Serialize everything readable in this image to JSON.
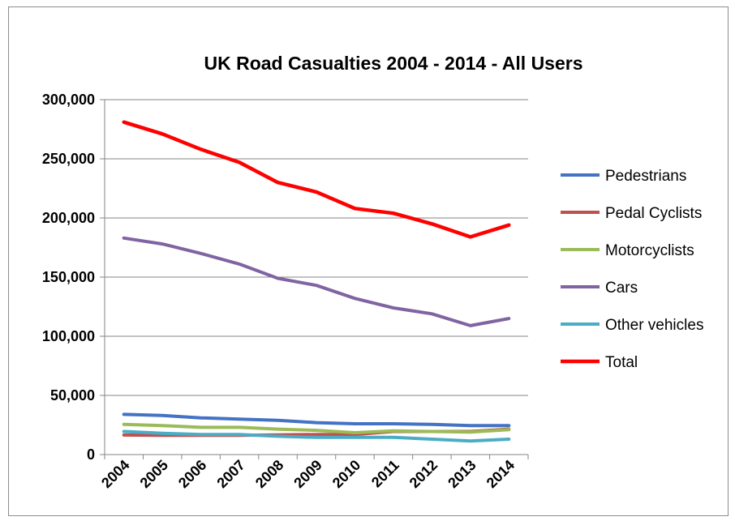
{
  "chart_data": {
    "type": "line",
    "title": "UK Road Casualties 2004 - 2014 - All Users",
    "categories": [
      "2004",
      "2005",
      "2006",
      "2007",
      "2008",
      "2009",
      "2010",
      "2011",
      "2012",
      "2013",
      "2014"
    ],
    "ylim": [
      0,
      300000
    ],
    "yticks": [
      0,
      50000,
      100000,
      150000,
      200000,
      250000,
      300000
    ],
    "ytick_labels": [
      "0",
      "50,000",
      "100,000",
      "150,000",
      "200,000",
      "250,000",
      "300,000"
    ],
    "grid": true,
    "legend_position": "right",
    "series": [
      {
        "name": "Pedestrians",
        "color": "#4472C4",
        "values": [
          34000,
          33000,
          31000,
          30000,
          29000,
          27000,
          26000,
          26000,
          25500,
          24500,
          24500
        ]
      },
      {
        "name": "Pedal Cyclists",
        "color": "#C0504D",
        "values": [
          16500,
          16200,
          16300,
          16200,
          16600,
          17000,
          17000,
          19500,
          19500,
          19500,
          21500
        ]
      },
      {
        "name": "Motorcyclists",
        "color": "#9BBB59",
        "values": [
          25500,
          24500,
          23000,
          23000,
          21500,
          20500,
          18500,
          20000,
          19500,
          19000,
          21000
        ]
      },
      {
        "name": "Cars",
        "color": "#8064A2",
        "values": [
          183000,
          178000,
          170000,
          161000,
          149000,
          143000,
          132000,
          124000,
          119000,
          109000,
          115000
        ]
      },
      {
        "name": "Other vehicles",
        "color": "#4BACC6",
        "values": [
          19500,
          18000,
          17000,
          17000,
          15500,
          14500,
          14500,
          14500,
          13000,
          11500,
          13000
        ]
      },
      {
        "name": "Total",
        "color": "#FF0000",
        "values": [
          281000,
          271000,
          258000,
          247000,
          230000,
          222000,
          208000,
          204000,
          195000,
          184000,
          194000
        ]
      }
    ]
  }
}
